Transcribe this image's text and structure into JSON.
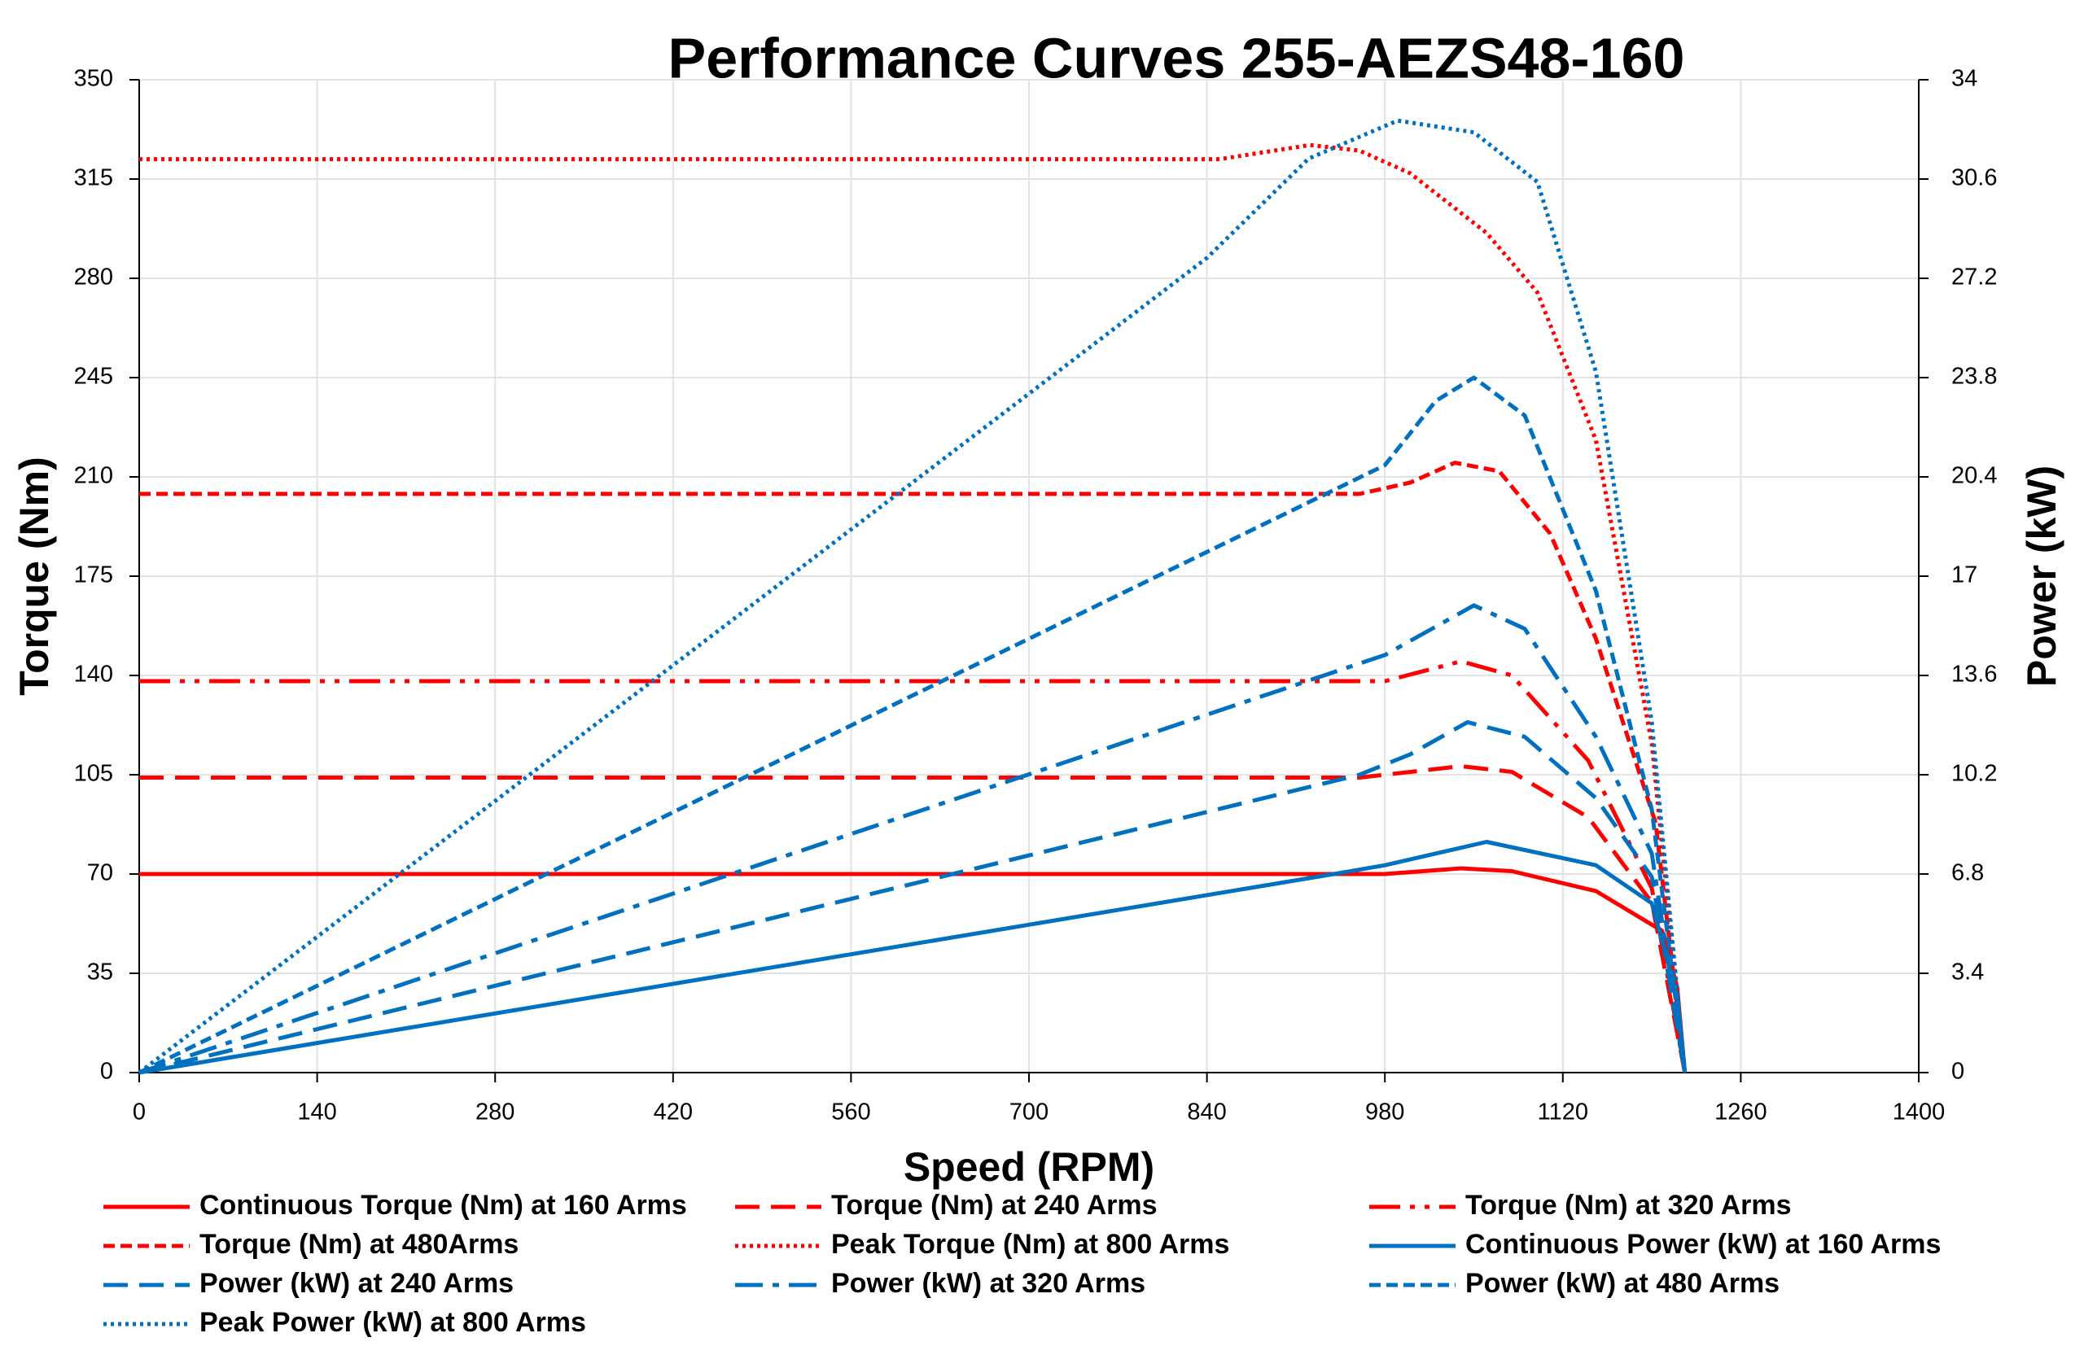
{
  "chart_data": {
    "type": "line",
    "title": "Performance Curves 255-AEZS48-160",
    "xlabel": "Speed (RPM)",
    "ylabel": "Torque (Nm)",
    "y2label": "Power (kW)",
    "xlim": [
      0,
      1400
    ],
    "xticks": [
      0,
      140,
      280,
      420,
      560,
      700,
      840,
      980,
      1120,
      1260,
      1400
    ],
    "ylim": [
      0,
      350
    ],
    "yticks": [
      0,
      35,
      70,
      105,
      140,
      175,
      210,
      245,
      280,
      315,
      350
    ],
    "y2lim": [
      0,
      34
    ],
    "y2ticks": [
      0,
      3.4,
      6.8,
      10.2,
      13.6,
      17,
      20.4,
      23.8,
      27.2,
      30.6,
      34
    ],
    "grid": true,
    "series": [
      {
        "name": "Continuous Torque (Nm) at 160 Arms",
        "color": "#ff0000",
        "dash": "solid",
        "x": [
          0,
          980,
          1040,
          1080,
          1146,
          1198,
          1210,
          1216
        ],
        "values": [
          70,
          70,
          72,
          71,
          64,
          50,
          30,
          0
        ]
      },
      {
        "name": "Torque (Nm) at 240 Arms",
        "color": "#ff0000",
        "dash": "dash",
        "x": [
          0,
          960,
          1040,
          1080,
          1140,
          1190,
          1216
        ],
        "values": [
          104,
          104,
          108,
          106,
          90,
          60,
          0
        ]
      },
      {
        "name": "Torque (Nm) at 320 Arms",
        "color": "#ff0000",
        "dash": "dashdotdot",
        "x": [
          0,
          980,
          1040,
          1080,
          1140,
          1190,
          1216
        ],
        "values": [
          138,
          138,
          145,
          140,
          110,
          65,
          0
        ]
      },
      {
        "name": "Torque (Nm) at 480Arms",
        "color": "#ff0000",
        "dash": "shortdash",
        "x": [
          0,
          960,
          1000,
          1035,
          1070,
          1110,
          1146,
          1193,
          1216
        ],
        "values": [
          204,
          204,
          208,
          215,
          212,
          190,
          153,
          88,
          0
        ]
      },
      {
        "name": "Peak Torque (Nm) at 800  Arms",
        "color": "#ff0000",
        "dash": "dot",
        "x": [
          0,
          850,
          921,
          960,
          1000,
          1060,
          1100,
          1146,
          1190,
          1216
        ],
        "values": [
          322,
          322,
          327,
          325,
          317,
          296,
          275,
          223,
          116,
          0
        ]
      },
      {
        "name": "Continuous Power (kW) at 160 Arms",
        "color": "#0070c0",
        "dash": "solid",
        "axis": "y2",
        "x": [
          0,
          940,
          980,
          1060,
          1146,
          1190,
          1210,
          1216
        ],
        "values": [
          0,
          6.8,
          7.1,
          7.9,
          7.1,
          5.8,
          2.6,
          0
        ]
      },
      {
        "name": "Power (kW) at 240 Arms",
        "color": "#0070c0",
        "dash": "dash",
        "axis": "y2",
        "x": [
          0,
          960,
          1000,
          1045,
          1090,
          1146,
          1190,
          1216
        ],
        "values": [
          0,
          10.2,
          10.9,
          12.0,
          11.5,
          9.4,
          6.7,
          0
        ]
      },
      {
        "name": "Power (kW) at 320 Arms",
        "color": "#0070c0",
        "dash": "dashdot",
        "axis": "y2",
        "x": [
          0,
          980,
          1050,
          1090,
          1146,
          1190,
          1216
        ],
        "values": [
          0,
          14.3,
          16.0,
          15.2,
          11.5,
          7.5,
          0
        ]
      },
      {
        "name": "Power (kW) at 480 Arms",
        "color": "#0070c0",
        "dash": "shortdash",
        "axis": "y2",
        "x": [
          0,
          980,
          1020,
          1050,
          1090,
          1146,
          1190,
          1216
        ],
        "values": [
          0,
          20.8,
          23.0,
          23.8,
          22.5,
          16.5,
          9,
          0
        ]
      },
      {
        "name": "Peak Power (kW) at 800 Arms",
        "color": "#0070c0",
        "dash": "dot",
        "axis": "y2",
        "x": [
          0,
          840,
          920,
          990,
          1050,
          1100,
          1146,
          1190,
          1216
        ],
        "values": [
          0,
          27.9,
          31.3,
          32.6,
          32.2,
          30.5,
          24,
          12,
          0
        ]
      }
    ]
  }
}
